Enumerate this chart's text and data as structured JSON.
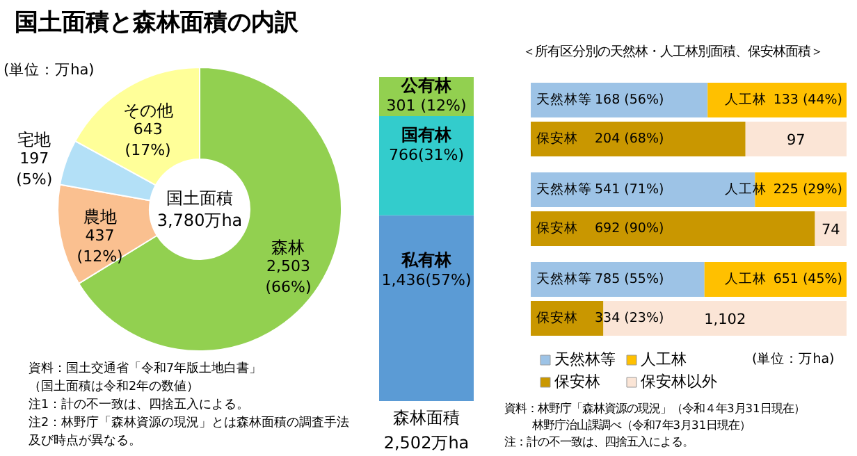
{
  "chart_data": [
    {
      "type": "donut",
      "title": "国土面積と森林面積の内訳",
      "categories": [
        "森林",
        "農地",
        "宅地",
        "その他"
      ],
      "values": [
        2503,
        437,
        197,
        643
      ],
      "colors": [
        "#92d050",
        "#fac090",
        "#b3e0f7",
        "#ffff99"
      ],
      "value_labels": [
        "2,503\n(66%)",
        "437\n(12%)",
        "197\n(5%)",
        "643\n(17%)"
      ],
      "annotations": [
        "(単位：万ha)",
        "国土面積\n3,780万ha",
        "資料：国土交通省「令和7年版土地白書」",
        "（国土面積は令和2年の数値）",
        "注1：計の不一致は、四捨五入による。",
        "注2：林野庁「森林資源の現況」とは森林面積の調査手法",
        "及び時点が異なる。"
      ]
    },
    {
      "type": "bar",
      "stacked": true,
      "categories": [
        null
      ],
      "series": [
        {
          "name": "私有林",
          "color": "#5b9bd5",
          "values": [
            1436
          ],
          "value_labels": [
            "1,436(57%)"
          ]
        },
        {
          "name": "国有林",
          "color": "#33cccc",
          "values": [
            766
          ],
          "value_labels": [
            "766(31%)"
          ]
        },
        {
          "name": "公有林",
          "color": "#92d050",
          "values": [
            301
          ],
          "value_labels": [
            "301 (12%)"
          ]
        }
      ],
      "annotations": [
        "森林面積",
        "2,502万ha"
      ]
    },
    {
      "type": "bar",
      "orientation": "horizontal",
      "stacked": true,
      "xlim": [
        0,
        1
      ],
      "title": "＜所有区分別の天然林・人工林別面積、保安林面積＞",
      "categories": [
        null,
        null,
        null,
        null,
        null,
        null
      ],
      "series": [
        {
          "name": "天然林等",
          "color": "#9dc3e6",
          "values": [
            0.56,
            null,
            0.71,
            null,
            0.55,
            null
          ],
          "value_labels": [
            "168 (56%)",
            null,
            "541 (71%)",
            null,
            "785 (55%)",
            null
          ]
        },
        {
          "name": "人工林",
          "color": "#ffc000",
          "values": [
            0.44,
            null,
            0.29,
            null,
            0.45,
            null
          ],
          "value_labels": [
            "133 (44%)",
            null,
            "225 (29%)",
            null,
            "651 (45%)",
            null
          ]
        },
        {
          "name": "保安林",
          "color": "#c99700",
          "values": [
            null,
            0.68,
            null,
            0.9,
            null,
            0.23
          ],
          "value_labels": [
            null,
            "204 (68%)",
            null,
            "692 (90%)",
            null,
            "334 (23%)"
          ]
        },
        {
          "name": "保安林以外",
          "color": "#fbe5d6",
          "values": [
            null,
            0.32,
            null,
            0.1,
            null,
            0.77
          ]
        }
      ],
      "legend": "bottom",
      "annotations": [
        "97",
        "74",
        "1,102",
        "(単位：万ha)",
        "資料：林野庁「森林資源の現況」（令和４年3月31日現在）",
        "林野庁治山課調べ（令和7年3月31日現在）",
        "注：計の不一致は、四捨五入による。"
      ]
    }
  ]
}
